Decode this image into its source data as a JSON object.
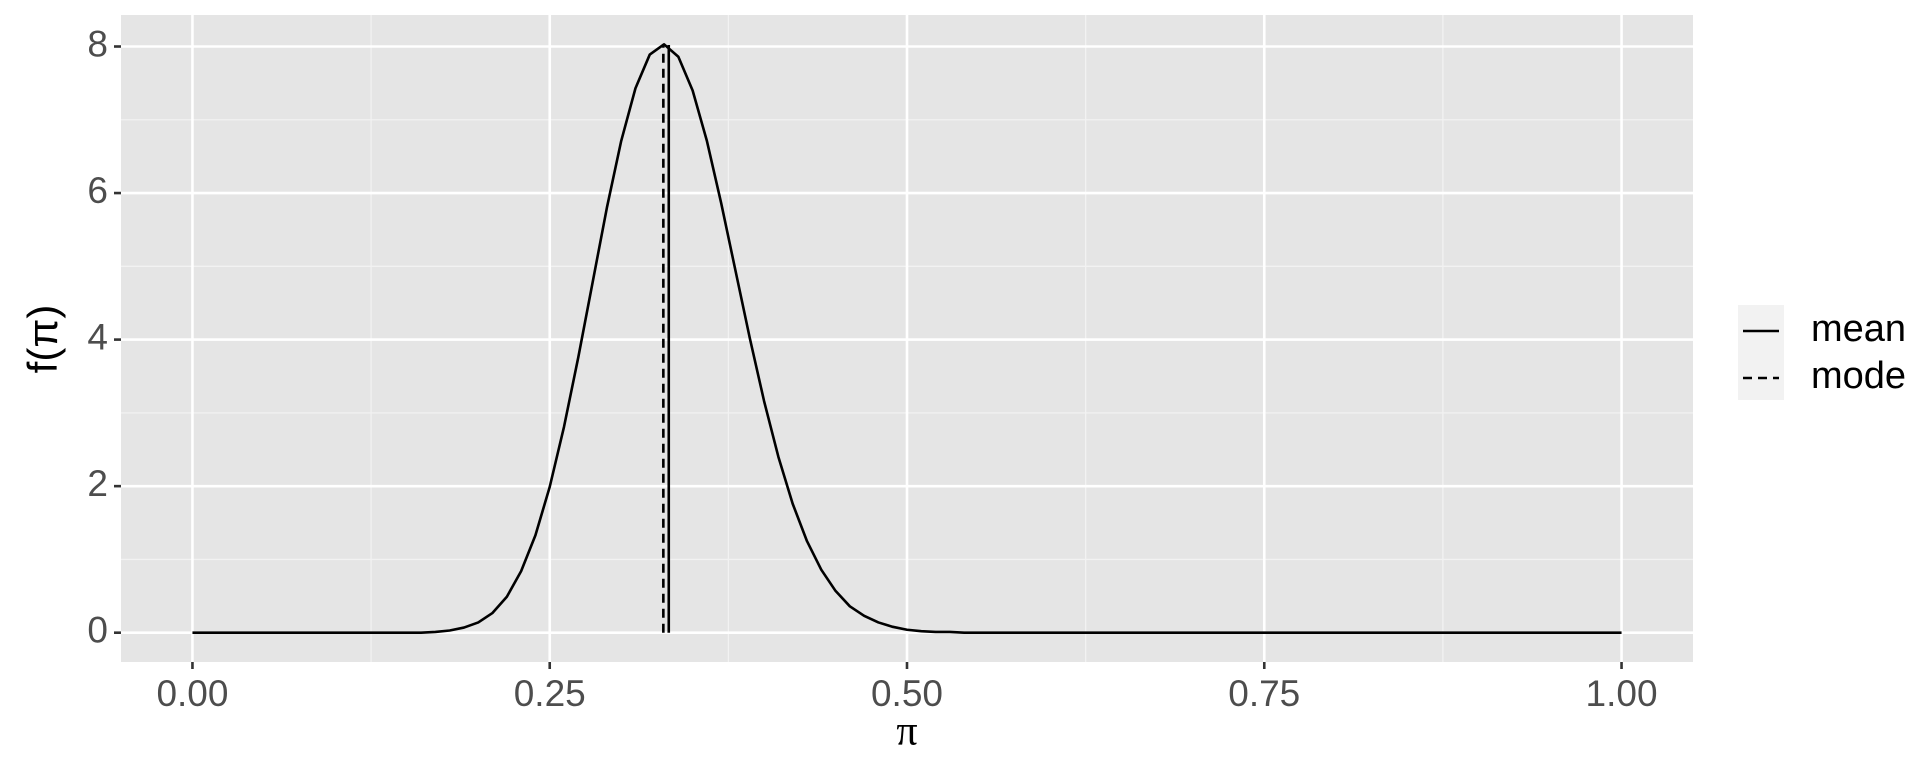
{
  "chart_data": {
    "type": "line",
    "xlabel": "π",
    "ylabel": "f(π)",
    "x": [
      0,
      0.01,
      0.02,
      0.03,
      0.04,
      0.05,
      0.06,
      0.07,
      0.08,
      0.09,
      0.1,
      0.11,
      0.12,
      0.13,
      0.14,
      0.15,
      0.16,
      0.17,
      0.18,
      0.19,
      0.2,
      0.21,
      0.22,
      0.23,
      0.24,
      0.25,
      0.26,
      0.27,
      0.28,
      0.29,
      0.3,
      0.31,
      0.32,
      0.33,
      0.34,
      0.35,
      0.36,
      0.37,
      0.38,
      0.39,
      0.4,
      0.41,
      0.42,
      0.43,
      0.44,
      0.45,
      0.46,
      0.47,
      0.48,
      0.49,
      0.5,
      0.51,
      0.52,
      0.53,
      0.54,
      0.55,
      0.56,
      0.57,
      0.58,
      0.59,
      0.6,
      0.61,
      0.62,
      0.63,
      0.64,
      0.65,
      0.66,
      0.67,
      0.68,
      0.69,
      0.7,
      0.71,
      0.72,
      0.73,
      0.74,
      0.75,
      0.76,
      0.77,
      0.78,
      0.79,
      0.8,
      0.81,
      0.82,
      0.83,
      0.84,
      0.85,
      0.86,
      0.87,
      0.88,
      0.89,
      0.9,
      0.91,
      0.92,
      0.93,
      0.94,
      0.95,
      0.96,
      0.97,
      0.98,
      0.99,
      1
    ],
    "series": [
      {
        "color": "#000000",
        "values": [
          0,
          0,
          0,
          0,
          0,
          0,
          0,
          0,
          0,
          0,
          0,
          0,
          0,
          0,
          0,
          0,
          0,
          0.01,
          0.03,
          0.07,
          0.14,
          0.27,
          0.49,
          0.84,
          1.33,
          1.99,
          2.81,
          3.76,
          4.78,
          5.8,
          6.71,
          7.43,
          7.89,
          8.03,
          7.86,
          7.4,
          6.71,
          5.86,
          4.94,
          4.02,
          3.16,
          2.4,
          1.76,
          1.25,
          0.86,
          0.57,
          0.36,
          0.23,
          0.14,
          0.08,
          0.04,
          0.02,
          0.01,
          0.01,
          0,
          0,
          0,
          0,
          0,
          0,
          0,
          0,
          0,
          0,
          0,
          0,
          0,
          0,
          0,
          0,
          0,
          0,
          0,
          0,
          0,
          0,
          0,
          0,
          0,
          0,
          0,
          0,
          0,
          0,
          0,
          0,
          0,
          0,
          0,
          0,
          0,
          0,
          0,
          0,
          0,
          0,
          0,
          0,
          0,
          0,
          0
        ]
      }
    ],
    "vlines": [
      {
        "name": "mean",
        "x": 0.3333,
        "y": 8.02,
        "dash": "solid",
        "color": "#000000"
      },
      {
        "name": "mode",
        "x": 0.3295,
        "y": 8.03,
        "dash": "dashed",
        "color": "#000000"
      }
    ],
    "xlim": [
      -0.05,
      1.05
    ],
    "ylim": [
      -0.4,
      8.43
    ],
    "xticks": [
      {
        "value": 0,
        "label": "0.00"
      },
      {
        "value": 0.25,
        "label": "0.25"
      },
      {
        "value": 0.5,
        "label": "0.50"
      },
      {
        "value": 0.75,
        "label": "0.75"
      },
      {
        "value": 1,
        "label": "1.00"
      }
    ],
    "yticks": [
      0,
      2,
      4,
      6,
      8
    ],
    "x_minor_grid": [
      0.125,
      0.375,
      0.625,
      0.875
    ],
    "y_minor_grid": [
      1,
      3,
      5,
      7
    ],
    "grid": true,
    "legend": "right"
  }
}
